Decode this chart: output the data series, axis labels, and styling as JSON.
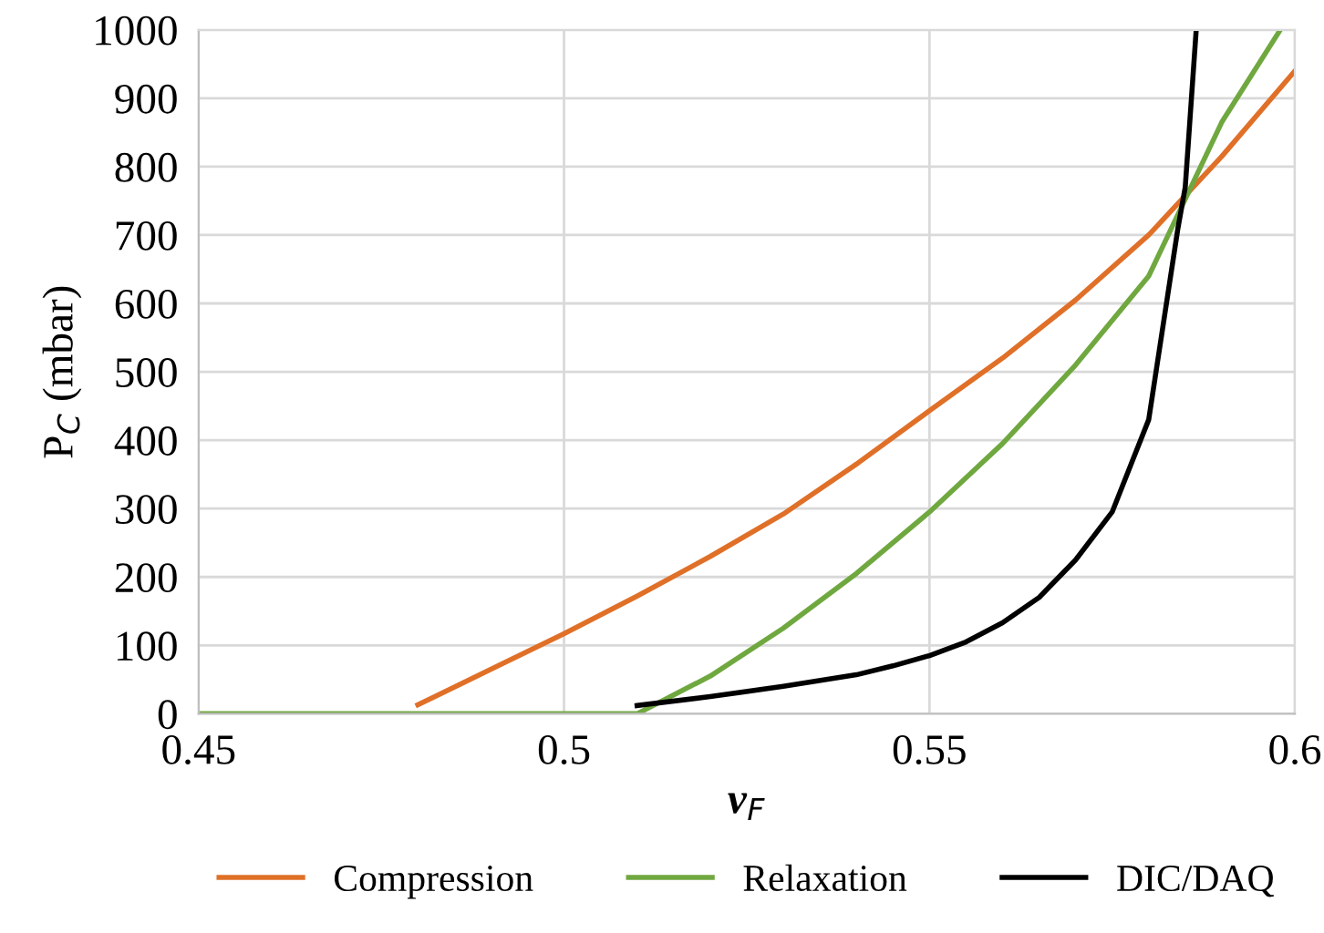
{
  "chart_data": {
    "type": "line",
    "xlabel": "v$_{F}$",
    "ylabel": "P$_{C}$ (mbar)",
    "xlim": [
      0.45,
      0.6
    ],
    "xticks": [
      0.45,
      0.5,
      0.55,
      0.6
    ],
    "ylim": [
      0,
      1000
    ],
    "yticks": [
      0,
      100,
      200,
      300,
      400,
      500,
      600,
      700,
      800,
      900,
      1000
    ],
    "grid": true,
    "legend": "bottom",
    "marker": "none",
    "line_style": "solid",
    "series": [
      {
        "name": "Compression",
        "color": "#e07028",
        "x": [
          0.48,
          0.49,
          0.5,
          0.51,
          0.52,
          0.53,
          0.54,
          0.55,
          0.56,
          0.57,
          0.58,
          0.59,
          0.6
        ],
        "values": [
          13,
          65,
          117,
          172,
          230,
          292,
          365,
          443,
          520,
          605,
          700,
          815,
          940
        ]
      },
      {
        "name": "Relaxation",
        "color": "#70a840",
        "x": [
          0.45,
          0.5,
          0.51,
          0.52,
          0.53,
          0.54,
          0.55,
          0.56,
          0.57,
          0.58,
          0.59,
          0.598
        ],
        "values": [
          0,
          0,
          0,
          55,
          125,
          205,
          295,
          395,
          510,
          640,
          865,
          1000
        ]
      },
      {
        "name": "DIC/DAQ",
        "color": "#000000",
        "x": [
          0.51,
          0.52,
          0.53,
          0.54,
          0.545,
          0.55,
          0.555,
          0.56,
          0.565,
          0.57,
          0.575,
          0.58,
          0.584,
          0.585,
          0.5865
        ],
        "values": [
          12,
          25,
          40,
          57,
          70,
          85,
          105,
          133,
          170,
          225,
          295,
          430,
          710,
          770,
          1000
        ]
      }
    ]
  }
}
